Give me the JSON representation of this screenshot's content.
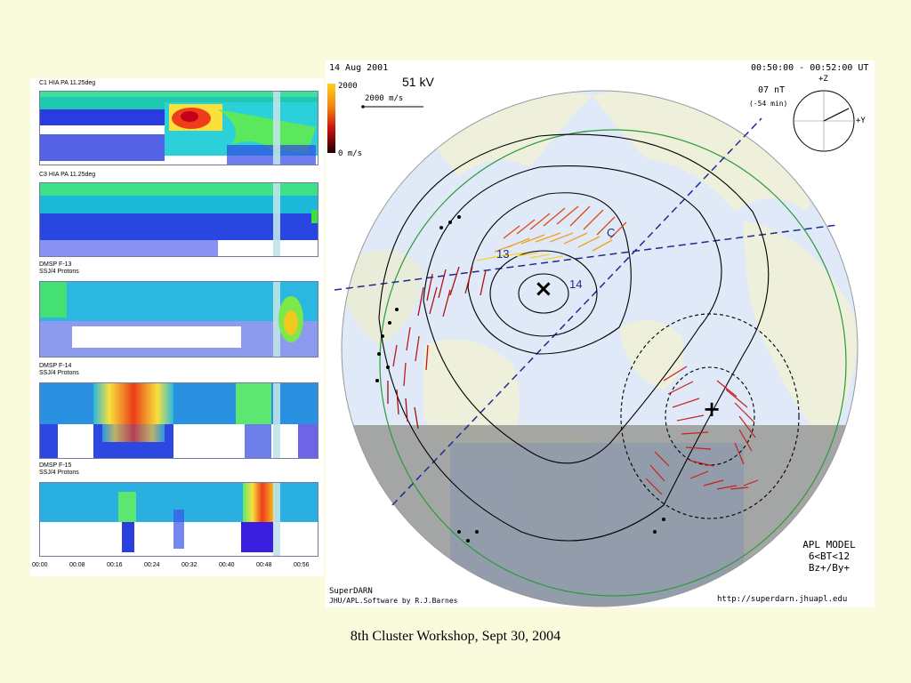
{
  "left_panel": {
    "spectrograms": [
      {
        "title_lines": [
          "C1 HIA PA 11.25deg"
        ]
      },
      {
        "title_lines": [
          "C3 HIA PA 11.25deg"
        ]
      },
      {
        "title_lines": [
          "DMSP F-13",
          "SSJ/4 Protons"
        ]
      },
      {
        "title_lines": [
          "DMSP F-14",
          "SSJ/4 Protons"
        ]
      },
      {
        "title_lines": [
          "DMSP F-15",
          "SSJ/4 Protons"
        ]
      }
    ],
    "time_ticks": [
      "00:00",
      "00:08",
      "00:16",
      "00:24",
      "00:32",
      "00:40",
      "00:48",
      "00:56"
    ]
  },
  "map": {
    "date": "14 Aug 2001",
    "potential": "51 kV",
    "time_range": "00:50:00 - 00:52:00 UT",
    "velocity_scale": "2000 m/s",
    "colorbar_max": "2000",
    "colorbar_min": "0 m/s",
    "imf_strength": "07 nT",
    "imf_delay": "(-54 min)",
    "axis_z": "+Z",
    "axis_y": "+Y",
    "model_lines": [
      "APL MODEL",
      "6<BT<12",
      "Bz+/By+"
    ],
    "credit_title": "SuperDARN",
    "credit_software": "JHU/APL.Software by R.J.Barnes",
    "url": "http://superdarn.jhuapl.edu",
    "labels": {
      "f13": "13",
      "f14": "14",
      "f15": "C"
    },
    "min_marker": "×",
    "max_marker": "+"
  },
  "caption": "8th Cluster Workshop, Sept 30, 2004"
}
